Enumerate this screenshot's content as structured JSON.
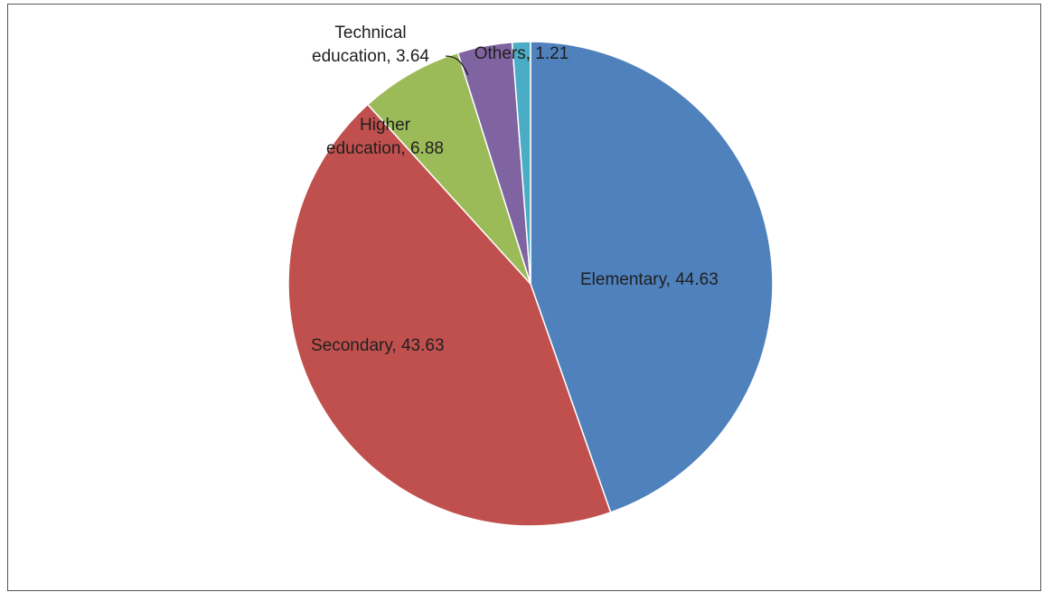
{
  "chart_data": {
    "type": "pie",
    "start": "12 o'clock",
    "direction": "clockwise",
    "legend": "none",
    "slices": [
      {
        "category": "Elementary",
        "value": 44.63,
        "label": "Elementary, 44.63",
        "color": "#4f81bd"
      },
      {
        "category": "Secondary",
        "value": 43.63,
        "label": "Secondary, 43.63",
        "color": "#c0504d"
      },
      {
        "category": "Higher education",
        "value": 6.88,
        "label": "Higher education, 6.88",
        "color": "#9bbb59"
      },
      {
        "category": "Technical education",
        "value": 3.64,
        "label": "Technical education, 3.64",
        "color": "#8064a2"
      },
      {
        "category": "Others",
        "value": 1.21,
        "label": "Others, 1.21",
        "color": "#4bacc6"
      }
    ]
  }
}
